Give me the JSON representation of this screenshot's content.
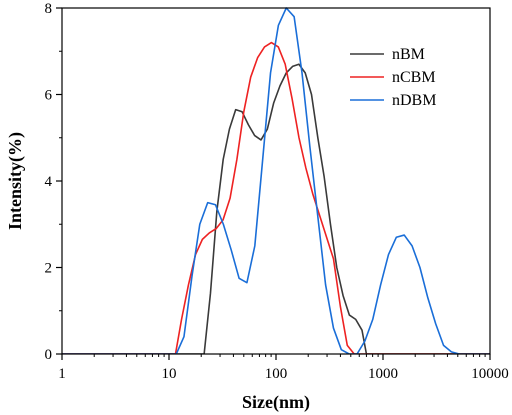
{
  "chart_data": {
    "type": "line",
    "title": "",
    "xlabel": "Size(nm)",
    "ylabel": "Intensity(%)",
    "xscale": "log",
    "xlim": [
      1,
      10000
    ],
    "ylim": [
      0,
      8
    ],
    "xticks": [
      1,
      10,
      100,
      1000,
      10000
    ],
    "xtick_labels": [
      "1",
      "10",
      "100",
      "1000",
      "10000"
    ],
    "yticks": [
      0,
      2,
      4,
      6,
      8
    ],
    "ytick_labels": [
      "0",
      "2",
      "4",
      "6",
      "8"
    ],
    "grid": false,
    "legend_position": "top-right",
    "series": [
      {
        "name": "nBM",
        "color": "#3a3a3a",
        "x": [
          1,
          15,
          21.3,
          24.4,
          28,
          32.1,
          36.7,
          42,
          48.2,
          55.2,
          63.2,
          72.4,
          83,
          95,
          108.9,
          124.7,
          142.9,
          163.7,
          187.5,
          214.7,
          246,
          281.8,
          322.8,
          369.7,
          423.5,
          485.1,
          555.7,
          636.5,
          700,
          10000
        ],
        "y": [
          0,
          0,
          0,
          1.4,
          3.3,
          4.5,
          5.2,
          5.65,
          5.6,
          5.3,
          5.05,
          4.95,
          5.2,
          5.8,
          6.2,
          6.5,
          6.65,
          6.7,
          6.5,
          6.0,
          5.0,
          4.1,
          3.0,
          2.0,
          1.35,
          0.9,
          0.8,
          0.55,
          0,
          0
        ]
      },
      {
        "name": "nCBM",
        "color": "#ee2222",
        "x": [
          1,
          11.5,
          13.1,
          15.2,
          17.7,
          20.5,
          23.8,
          27.6,
          32,
          37.2,
          43.1,
          50,
          58,
          67.3,
          78.1,
          90.6,
          105.1,
          121.9,
          141.4,
          164,
          190.2,
          220.7,
          256,
          297,
          344.5,
          399.6,
          463.6,
          537.8,
          10000
        ],
        "y": [
          0,
          0,
          0.8,
          1.6,
          2.3,
          2.65,
          2.8,
          2.9,
          3.1,
          3.6,
          4.5,
          5.6,
          6.4,
          6.85,
          7.1,
          7.2,
          7.1,
          6.7,
          5.9,
          5.0,
          4.3,
          3.7,
          3.2,
          2.7,
          2.2,
          1.1,
          0.2,
          0,
          0
        ]
      },
      {
        "name": "nDBM",
        "color": "#1a6ed8",
        "x": [
          1,
          11.7,
          13.8,
          16.4,
          19.4,
          23,
          27.2,
          32.2,
          38.2,
          45.2,
          53.5,
          63.4,
          75.1,
          88.9,
          105.3,
          124.7,
          147.7,
          175,
          207.2,
          245.4,
          290.7,
          344.3,
          407.7,
          482.9,
          572,
          677.4,
          802.3,
          950.3,
          1125.5,
          1333,
          1578.8,
          1869.9,
          2214.7,
          2623,
          3106.7,
          3679.6,
          4358.1,
          5161.7,
          10000
        ],
        "y": [
          0,
          0,
          0.4,
          1.8,
          3.0,
          3.5,
          3.45,
          3.0,
          2.4,
          1.75,
          1.65,
          2.5,
          4.5,
          6.5,
          7.6,
          8.0,
          7.8,
          6.5,
          4.8,
          3.2,
          1.6,
          0.6,
          0.1,
          0,
          0,
          0.3,
          0.8,
          1.6,
          2.3,
          2.7,
          2.75,
          2.5,
          2.0,
          1.3,
          0.7,
          0.2,
          0.05,
          0,
          0
        ]
      }
    ]
  }
}
